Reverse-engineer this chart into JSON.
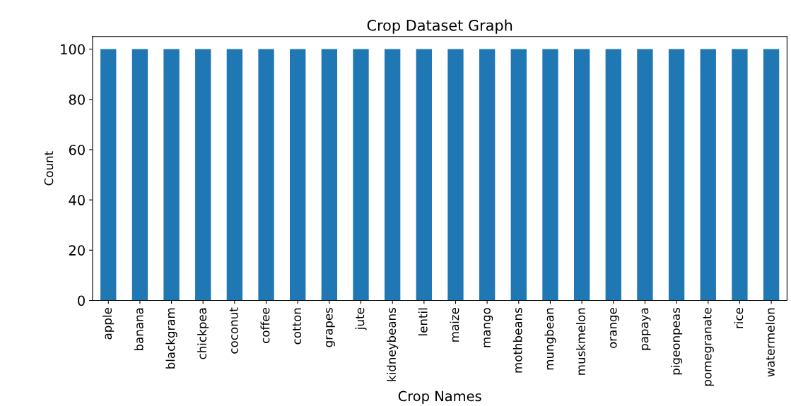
{
  "chart_data": {
    "type": "bar",
    "title": "Crop Dataset Graph",
    "xlabel": "Crop Names",
    "ylabel": "Count",
    "categories": [
      "apple",
      "banana",
      "blackgram",
      "chickpea",
      "coconut",
      "coffee",
      "cotton",
      "grapes",
      "jute",
      "kidneybeans",
      "lentil",
      "maize",
      "mango",
      "mothbeans",
      "mungbean",
      "muskmelon",
      "orange",
      "papaya",
      "pigeonpeas",
      "pomegranate",
      "rice",
      "watermelon"
    ],
    "values": [
      100,
      100,
      100,
      100,
      100,
      100,
      100,
      100,
      100,
      100,
      100,
      100,
      100,
      100,
      100,
      100,
      100,
      100,
      100,
      100,
      100,
      100
    ],
    "color": "#1f77b4",
    "ylim": [
      0,
      105
    ],
    "yticks": [
      0,
      20,
      40,
      60,
      80,
      100
    ],
    "grid": false,
    "legend": false
  }
}
